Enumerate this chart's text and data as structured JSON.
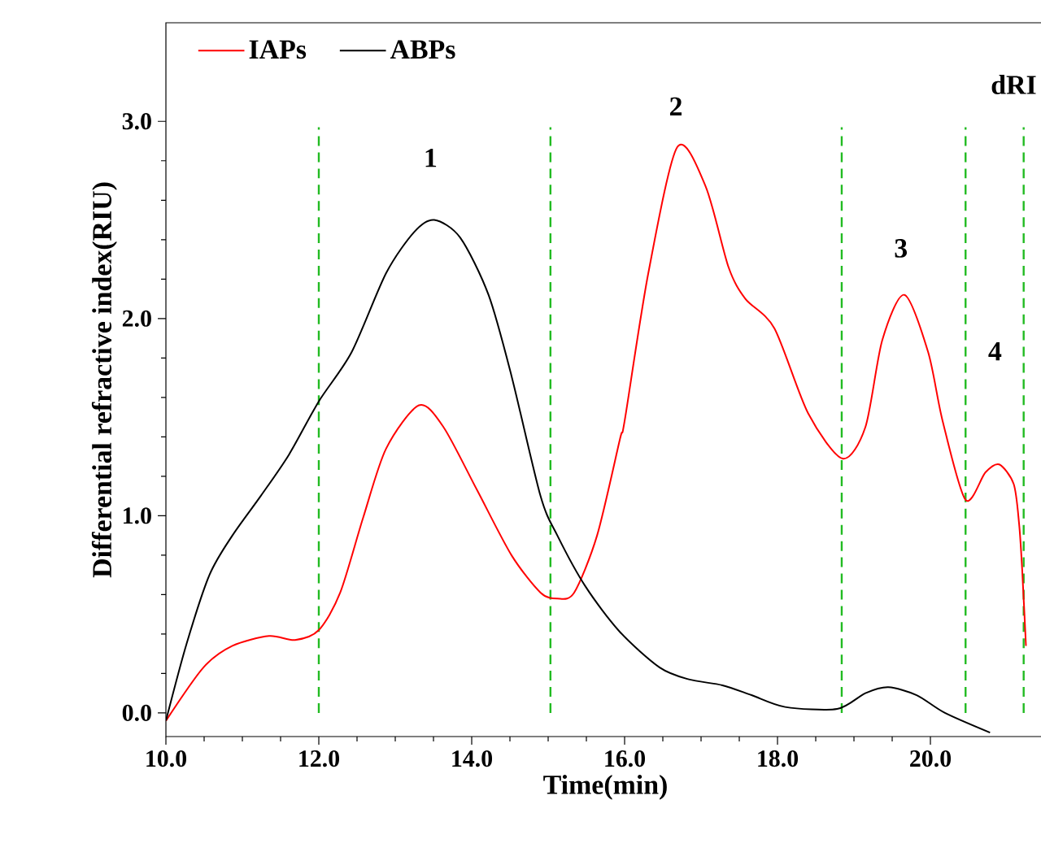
{
  "chart_data": {
    "type": "line",
    "xlabel": "Time(min)",
    "ylabel": "Differential refractive index(RIU)",
    "xlim": [
      10,
      21.5
    ],
    "ylim": [
      -0.12,
      3.5
    ],
    "xticks": [
      {
        "value": 10,
        "label": "10.0"
      },
      {
        "value": 12,
        "label": "12.0"
      },
      {
        "value": 14,
        "label": "14.0"
      },
      {
        "value": 16,
        "label": "16.0"
      },
      {
        "value": 18,
        "label": "18.0"
      },
      {
        "value": 20,
        "label": "20.0"
      }
    ],
    "yticks": [
      {
        "value": 0,
        "label": "0.0"
      },
      {
        "value": 1,
        "label": "1.0"
      },
      {
        "value": 2,
        "label": "2.0"
      },
      {
        "value": 3,
        "label": "3.0"
      }
    ],
    "legend": "top left",
    "grid": false,
    "marker": "none",
    "line_style": "solid",
    "series": [
      {
        "name": "IAPs",
        "color": "#ff0000",
        "x": [
          10,
          10.49,
          10.87,
          11.35,
          11.69,
          12.0,
          12.28,
          12.58,
          12.88,
          13.31,
          13.63,
          14.07,
          14.52,
          14.9,
          15.12,
          15.34,
          15.64,
          15.94,
          16.0,
          16.31,
          16.69,
          17.06,
          17.36,
          17.58,
          17.96,
          18.4,
          18.85,
          19.15,
          19.37,
          19.66,
          19.97,
          20.16,
          20.46,
          20.72,
          20.9,
          21.09,
          21.16,
          21.2,
          21.25
        ],
        "values": [
          -0.04,
          0.23,
          0.34,
          0.39,
          0.37,
          0.42,
          0.61,
          0.99,
          1.34,
          1.56,
          1.45,
          1.13,
          0.8,
          0.61,
          0.58,
          0.61,
          0.9,
          1.39,
          1.48,
          2.23,
          2.87,
          2.67,
          2.26,
          2.1,
          1.95,
          1.52,
          1.29,
          1.45,
          1.89,
          2.12,
          1.83,
          1.48,
          1.08,
          1.22,
          1.26,
          1.16,
          0.96,
          0.73,
          0.34
        ]
      },
      {
        "name": "ABPs",
        "color": "#000000",
        "x": [
          10,
          10.27,
          10.57,
          10.87,
          11.24,
          11.61,
          12.0,
          12.43,
          12.88,
          13.25,
          13.51,
          13.85,
          14.22,
          14.52,
          14.9,
          15.12,
          15.49,
          15.94,
          16.46,
          16.84,
          17.28,
          17.66,
          18.1,
          18.78,
          19.15,
          19.45,
          19.82,
          20.19,
          20.78
        ],
        "values": [
          -0.04,
          0.35,
          0.7,
          0.9,
          1.1,
          1.31,
          1.58,
          1.83,
          2.23,
          2.44,
          2.5,
          2.41,
          2.12,
          1.71,
          1.1,
          0.9,
          0.64,
          0.41,
          0.23,
          0.17,
          0.14,
          0.09,
          0.03,
          0.02,
          0.1,
          0.13,
          0.09,
          0.0,
          -0.1
        ]
      }
    ],
    "ref_lines": [
      {
        "axis": "x",
        "value": 12.0,
        "color": "#22bb22",
        "line_style": "dashed"
      },
      {
        "axis": "x",
        "value": 15.03,
        "color": "#22bb22",
        "line_style": "dashed"
      },
      {
        "axis": "x",
        "value": 18.84,
        "color": "#22bb22",
        "line_style": "dashed"
      },
      {
        "axis": "x",
        "value": 20.46,
        "color": "#22bb22",
        "line_style": "dashed"
      },
      {
        "axis": "x",
        "value": 21.22,
        "color": "#22bb22",
        "line_style": "dashed"
      }
    ],
    "annotations": [
      "1",
      "2",
      "3",
      "4",
      "dRI"
    ]
  }
}
